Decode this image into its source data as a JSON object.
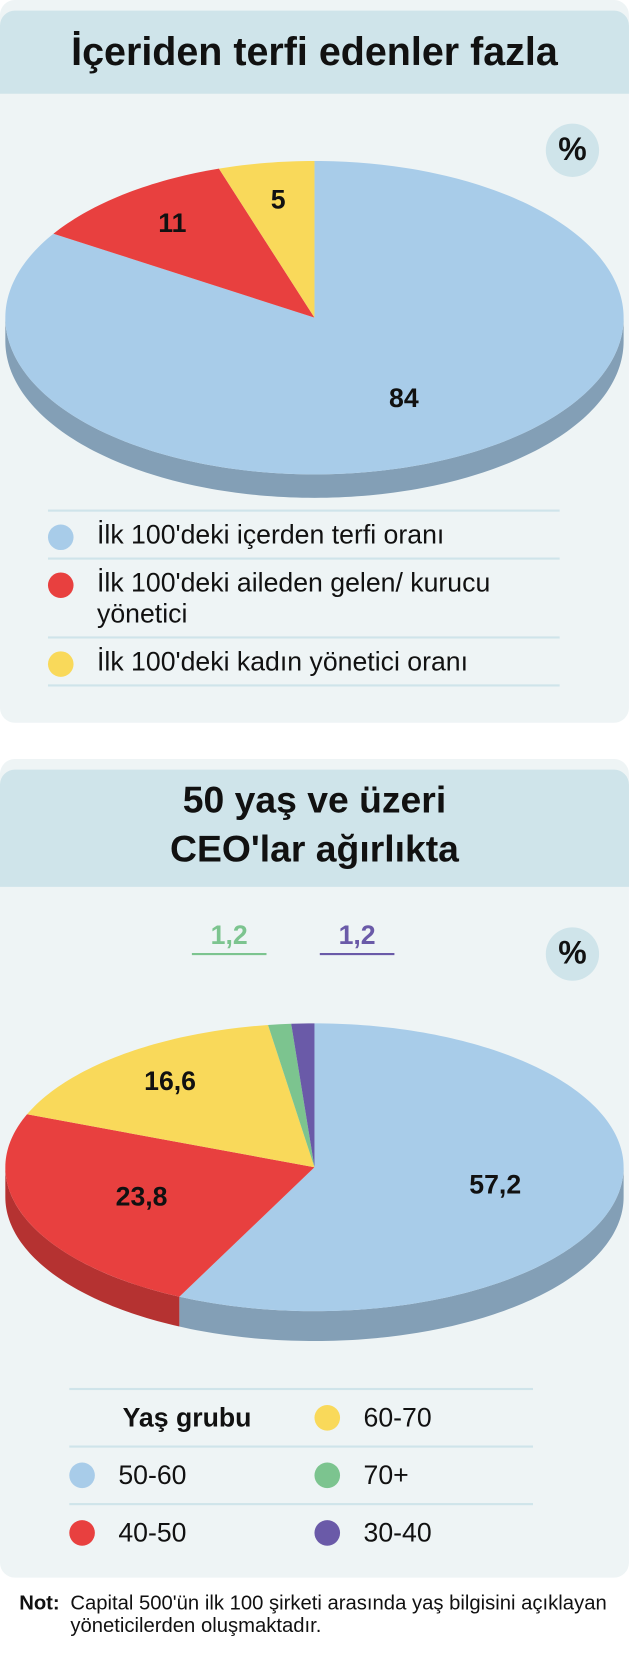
{
  "chart_data": [
    {
      "type": "pie",
      "title": "İçeriden terfi edenler fazla",
      "unit_label": "%",
      "categories": [
        "İlk 100'deki  içerden terfi oranı",
        "İlk 100'deki aileden gelen/ kurucu yönetici",
        "İlk 100'deki kadın yönetici oranı"
      ],
      "values": [
        84,
        11,
        5
      ],
      "colors": [
        "#a8cce9",
        "#e8403f",
        "#f9d95a"
      ]
    },
    {
      "type": "pie",
      "title": "50 yaş ve üzeri\nCEO'lar ağırlıkta",
      "unit_label": "%",
      "legend_title": "Yaş grubu",
      "categories": [
        "50-60",
        "40-50",
        "60-70",
        "70+",
        "30-40"
      ],
      "values": [
        57.2,
        23.8,
        16.6,
        1.2,
        1.2
      ],
      "value_labels": [
        "57,2",
        "23,8",
        "16,6",
        "1,2",
        "1,2"
      ],
      "colors": [
        "#a8cce9",
        "#e8403f",
        "#f9d95a",
        "#7cc48f",
        "#6a5aa8"
      ]
    }
  ],
  "note": {
    "label": "Not:",
    "text": "Capital 500'ün ilk 100 şirketi arasında yaş bilgisini açıklayan yöneticilerden oluşmaktadır."
  }
}
